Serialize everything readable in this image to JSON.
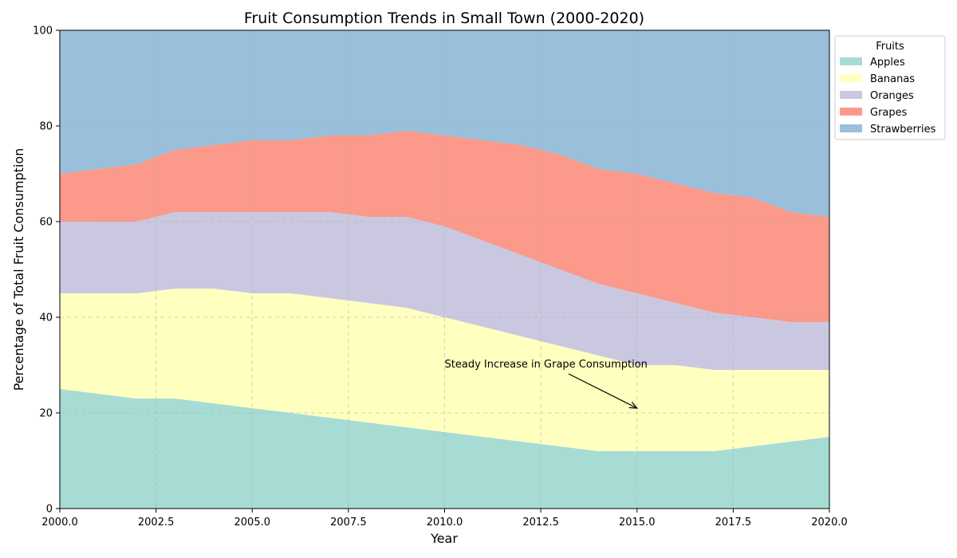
{
  "chart_data": {
    "type": "area",
    "stacked": true,
    "title": "Fruit Consumption Trends in Small Town (2000-2020)",
    "xlabel": "Year",
    "ylabel": "Percentage of Total Fruit Consumption",
    "xlim": [
      2000,
      2020
    ],
    "ylim": [
      0,
      100
    ],
    "xticks": [
      2000,
      2002.5,
      2005,
      2007.5,
      2010,
      2012.5,
      2015,
      2017.5,
      2020
    ],
    "xtick_labels": [
      "2000.0",
      "2002.5",
      "2005.0",
      "2007.5",
      "2010.0",
      "2012.5",
      "2015.0",
      "2017.5",
      "2020.0"
    ],
    "yticks": [
      0,
      20,
      40,
      60,
      80,
      100
    ],
    "ytick_labels": [
      "0",
      "20",
      "40",
      "60",
      "80",
      "100"
    ],
    "grid": true,
    "legend": {
      "title": "Fruits",
      "placement": "outside-top-right"
    },
    "x": [
      2000,
      2001,
      2002,
      2003,
      2004,
      2005,
      2006,
      2007,
      2008,
      2009,
      2010,
      2011,
      2012,
      2013,
      2014,
      2015,
      2016,
      2017,
      2018,
      2019,
      2020
    ],
    "series": [
      {
        "name": "Apples",
        "color": "#a6dcd4",
        "values": [
          25,
          24,
          23,
          23,
          22,
          21,
          20,
          19,
          18,
          17,
          16,
          15,
          14,
          13,
          12,
          12,
          12,
          12,
          13,
          14,
          15
        ]
      },
      {
        "name": "Bananas",
        "color": "#ffffc0",
        "values": [
          20,
          21,
          22,
          23,
          24,
          24,
          25,
          25,
          25,
          25,
          24,
          23,
          22,
          21,
          20,
          18,
          18,
          17,
          16,
          15,
          14
        ]
      },
      {
        "name": "Oranges",
        "color": "#cac8e0",
        "values": [
          15,
          15,
          15,
          16,
          16,
          17,
          17,
          18,
          18,
          19,
          19,
          18,
          17,
          16,
          15,
          15,
          13,
          12,
          11,
          10,
          10
        ]
      },
      {
        "name": "Grapes",
        "color": "#fb998a",
        "values": [
          10,
          11,
          12,
          13,
          14,
          15,
          15,
          16,
          17,
          18,
          19,
          21,
          23,
          24,
          24,
          25,
          25,
          25,
          25,
          23,
          22
        ]
      },
      {
        "name": "Strawberries",
        "color": "#99bfda",
        "values": [
          30,
          29,
          28,
          25,
          24,
          23,
          23,
          22,
          22,
          21,
          22,
          23,
          24,
          26,
          29,
          30,
          32,
          34,
          35,
          38,
          39
        ]
      }
    ],
    "annotations": [
      {
        "text": "Steady Increase in Grape Consumption",
        "text_at": [
          2010,
          30
        ],
        "arrow_to": [
          2015,
          21
        ]
      }
    ]
  }
}
